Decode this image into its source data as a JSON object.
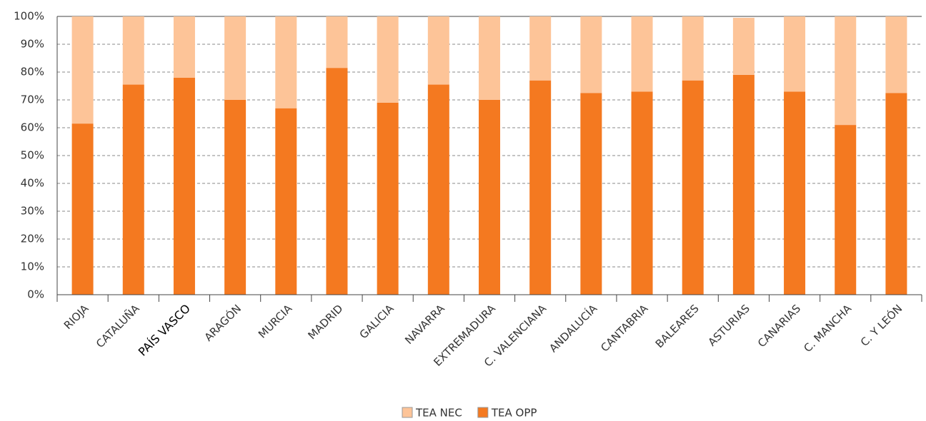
{
  "chart_data": {
    "type": "stacked_bar",
    "categories": [
      "RIOJA",
      "CATALUÑA",
      "PAÍS VASCO",
      "ARAGÓN",
      "MURCIA",
      "MADRID",
      "GALICIA",
      "NAVARRA",
      "EXTREMADURA",
      "C. VALENCIANA",
      "ANDALUCÍA",
      "CANTABRIA",
      "BALEARES",
      "ASTURIAS",
      "CANARIAS",
      "C. MANCHA",
      "C. Y LEÓN"
    ],
    "series": [
      {
        "name": "TEA OPP",
        "color": "#f47920",
        "values": [
          61.5,
          75.5,
          78,
          70,
          67,
          81.5,
          69,
          75.5,
          70,
          77,
          72.5,
          73,
          77,
          79,
          73,
          61,
          72.5
        ]
      },
      {
        "name": "TEA NEC",
        "color": "#fdc498",
        "values": [
          38.5,
          24.5,
          22,
          30,
          33,
          18.5,
          31,
          24.5,
          30,
          23,
          27.5,
          27,
          23,
          20.5,
          27,
          39,
          27.5
        ]
      }
    ],
    "ylim": [
      0,
      100
    ],
    "yticks": [
      {
        "value": 0,
        "label": "0%"
      },
      {
        "value": 10,
        "label": "10%"
      },
      {
        "value": 20,
        "label": "20%"
      },
      {
        "value": 30,
        "label": "30%"
      },
      {
        "value": 40,
        "label": "40%"
      },
      {
        "value": 50,
        "label": "50%"
      },
      {
        "value": 60,
        "label": "60%"
      },
      {
        "value": 70,
        "label": "70%"
      },
      {
        "value": 80,
        "label": "80%"
      },
      {
        "value": 90,
        "label": "90%"
      },
      {
        "value": 100,
        "label": "100%"
      }
    ],
    "grid": true,
    "legend": "bottom",
    "highlight": 2
  }
}
